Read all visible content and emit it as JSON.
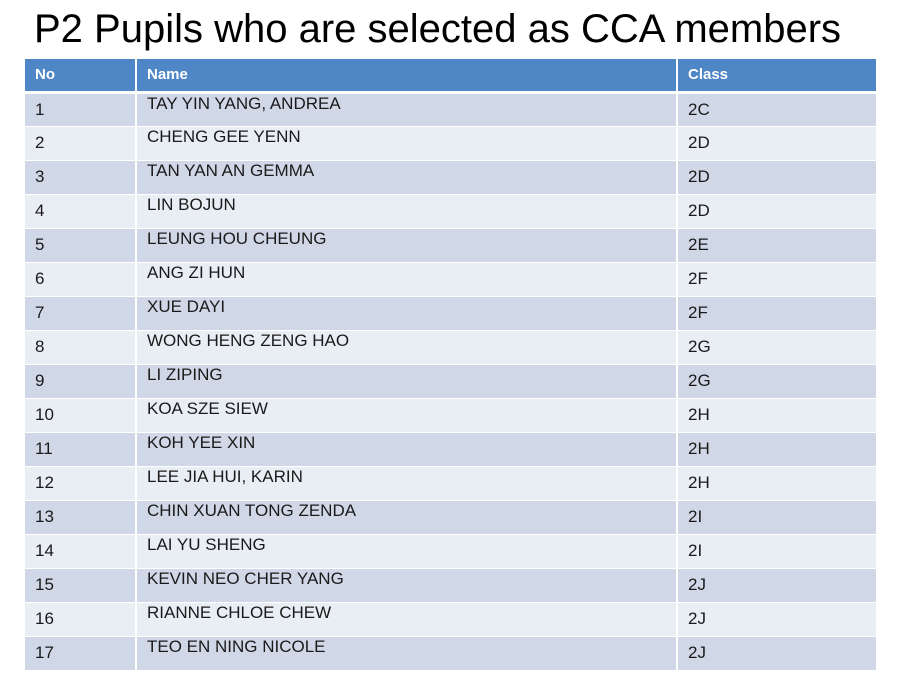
{
  "title": "P2 Pupils who are selected as CCA members",
  "table": {
    "headers": {
      "no": "No",
      "name": "Name",
      "class": "Class"
    },
    "rows": [
      {
        "no": "1",
        "name": "TAY YIN YANG, ANDREA",
        "class": "2C"
      },
      {
        "no": "2",
        "name": "CHENG GEE YENN",
        "class": "2D"
      },
      {
        "no": "3",
        "name": "TAN YAN AN GEMMA",
        "class": "2D"
      },
      {
        "no": "4",
        "name": "LIN BOJUN",
        "class": "2D"
      },
      {
        "no": "5",
        "name": "LEUNG HOU CHEUNG",
        "class": "2E"
      },
      {
        "no": "6",
        "name": "ANG ZI HUN",
        "class": "2F"
      },
      {
        "no": "7",
        "name": "XUE DAYI",
        "class": "2F"
      },
      {
        "no": "8",
        "name": "WONG HENG ZENG HAO",
        "class": "2G"
      },
      {
        "no": "9",
        "name": "LI ZIPING",
        "class": "2G"
      },
      {
        "no": "10",
        "name": "KOA SZE SIEW",
        "class": "2H"
      },
      {
        "no": "11",
        "name": "KOH YEE XIN",
        "class": "2H"
      },
      {
        "no": "12",
        "name": "LEE JIA HUI, KARIN",
        "class": "2H"
      },
      {
        "no": "13",
        "name": "CHIN XUAN TONG ZENDA",
        "class": "2I"
      },
      {
        "no": "14",
        "name": "LAI YU SHENG",
        "class": "2I"
      },
      {
        "no": "15",
        "name": "KEVIN NEO CHER YANG",
        "class": "2J"
      },
      {
        "no": "16",
        "name": "RIANNE CHLOE CHEW",
        "class": "2J"
      },
      {
        "no": "17",
        "name": "TEO EN NING NICOLE",
        "class": "2J"
      }
    ]
  },
  "colors": {
    "header_bg": "#4f86c6",
    "row_odd_bg": "#d0d8e8",
    "row_even_bg": "#e9edf4"
  }
}
